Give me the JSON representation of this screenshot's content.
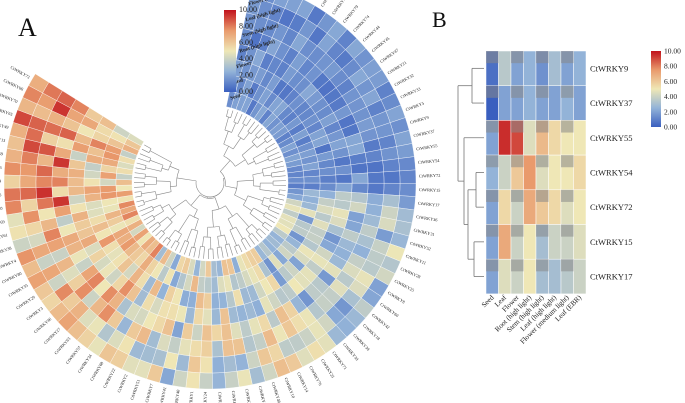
{
  "panel_labels": {
    "a": "A",
    "b": "B"
  },
  "chart_data": [
    {
      "type": "heatmap",
      "layout": "circular",
      "title": "",
      "colorbar": {
        "min": 0,
        "max": 10,
        "tick_labels": [
          "10.00",
          "8.00",
          "6.00",
          "4.00",
          "2.00",
          "0.00"
        ]
      },
      "ring_labels": [
        "Leaf (EBR)",
        "Flower (medium light)",
        "Leaf (high light)",
        "Stem (high light)",
        "Root (high light)",
        "Flower",
        "Leaf",
        "Seed"
      ],
      "genes": [
        "CtWRKY58",
        "CtWRKY53",
        "CtWRKY56",
        "CtWRKY77",
        "CtWRKY16",
        "CtWRKY12",
        "CtWRKY75",
        "CtWRKY79",
        "CtWRKY74",
        "CtWRKY44",
        "CtWRKY45",
        "CtWRKY47",
        "CtWRKY21",
        "CtWRKY32",
        "CtWRKY33",
        "CtWRKY5",
        "CtWRKY9",
        "CtWRKY37",
        "CtWRKY55",
        "CtWRKY54",
        "CtWRKY72",
        "CtWRKY15",
        "CtWRKY17",
        "CtWRKY36",
        "CtWRKY31",
        "CtWRKY52",
        "CtWRKY11",
        "CtWRKY28",
        "CtWRKY25",
        "CtWRKY8",
        "CtWRKY60",
        "CtWRKY42",
        "CtWRKY18",
        "CtWRKY30",
        "CtWRKY39",
        "CtWRKY71",
        "CtWRKY23",
        "CtWRKY76",
        "CtWRKY14",
        "CtWRKY10",
        "CtWRKY48",
        "CtWRKY43",
        "CtWRKY62",
        "CtWRKY19",
        "CtWRKY50",
        "CtWRKY24",
        "CtWRKY1",
        "CtWRKY40",
        "CtWRKY41",
        "CtWRKY7",
        "CtWRKY51",
        "CtWRKY2",
        "CtWRKY22",
        "CtWRKY68",
        "CtWRKY34",
        "CtWRKY57",
        "CtWRKY63",
        "CtWRKY27",
        "CtWRKY46",
        "CtWRKY3",
        "CtWRKY29",
        "CtWRKY35",
        "CtWRKY80",
        "CtWRKY4",
        "CtWRKY38",
        "CtWRKY61",
        "CtWRKY69",
        "CtWRKY20",
        "CtWRKY26",
        "CtWRKY64",
        "CtWRKY6",
        "CtWRKY59",
        "CtWRKY13",
        "CtWRKY49",
        "CtWRKY65",
        "CtWRKY70",
        "CtWRKY66",
        "CtWRKY73"
      ]
    },
    {
      "type": "heatmap",
      "title": "",
      "colorbar": {
        "min": 0,
        "max": 10,
        "tick_labels": [
          "10.00",
          "8.00",
          "6.00",
          "4.00",
          "2.00",
          "0.00"
        ]
      },
      "rows": [
        "CtWRKY9",
        "CtWRKY37",
        "CtWRKY55",
        "CtWRKY54",
        "CtWRKY72",
        "CtWRKY15",
        "CtWRKY17"
      ],
      "columns": [
        "Seed",
        "Leaf",
        "Flower",
        "Root (high light)",
        "Stem (high light)",
        "Leaf (high light)",
        "Flower (medium light)",
        "Leaf (EBR)"
      ],
      "values": [
        [
          0.5,
          3.5,
          2.0,
          2.5,
          1.5,
          3.0,
          2.0,
          2.5
        ],
        [
          0.0,
          2.0,
          2.0,
          2.5,
          2.0,
          2.0,
          2.5,
          2.0
        ],
        [
          2.0,
          9.5,
          9.0,
          4.5,
          6.5,
          5.5,
          5.0,
          5.0
        ],
        [
          2.5,
          4.0,
          6.0,
          7.5,
          4.5,
          5.0,
          5.0,
          5.5
        ],
        [
          2.0,
          5.5,
          4.0,
          7.0,
          6.0,
          5.5,
          4.5,
          5.0
        ],
        [
          2.0,
          7.0,
          4.0,
          5.0,
          3.0,
          4.0,
          4.0,
          4.5
        ],
        [
          2.0,
          4.5,
          4.0,
          5.0,
          3.0,
          3.0,
          3.5,
          4.0
        ]
      ]
    }
  ]
}
